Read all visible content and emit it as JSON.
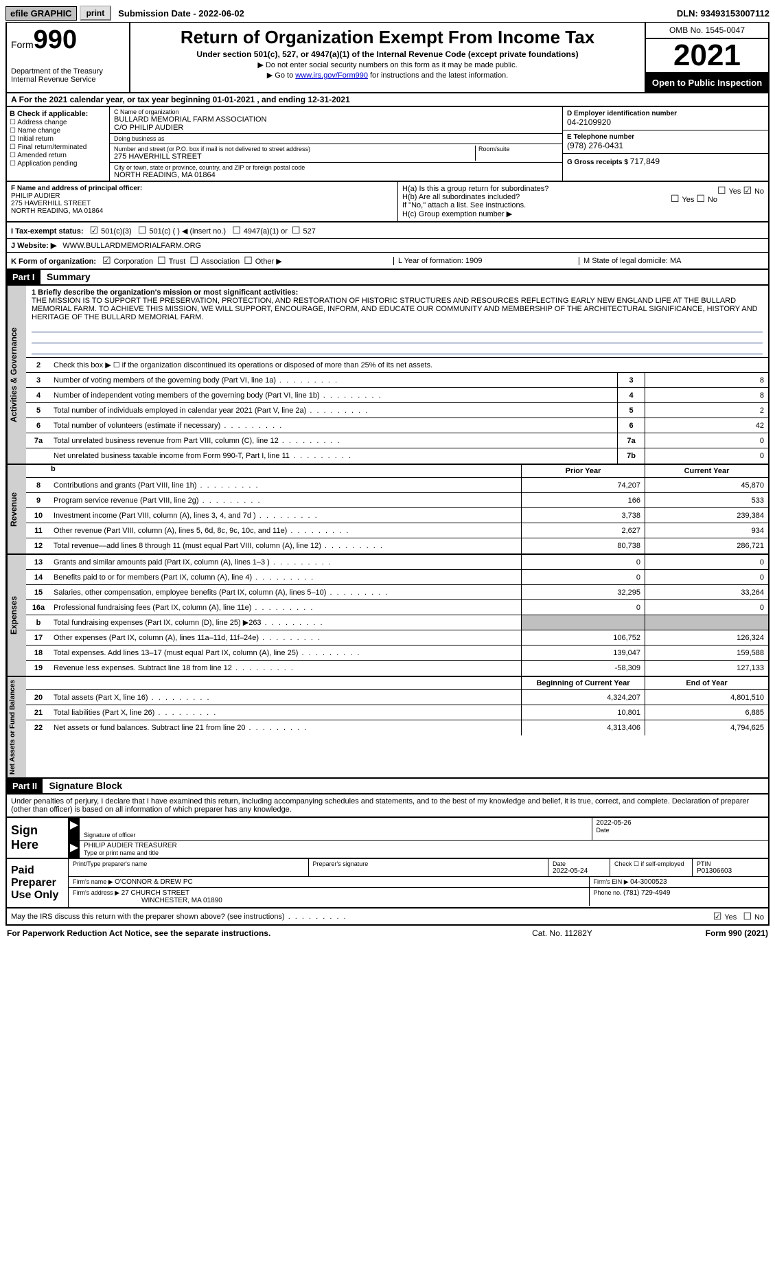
{
  "topbar": {
    "efile": "efile GRAPHIC",
    "print": "print",
    "subdate_lbl": "Submission Date - ",
    "subdate": "2022-06-02",
    "dln_lbl": "DLN: ",
    "dln": "93493153007112"
  },
  "header": {
    "form_small": "Form",
    "form_big": "990",
    "dept1": "Department of the Treasury",
    "dept2": "Internal Revenue Service",
    "title": "Return of Organization Exempt From Income Tax",
    "sub": "Under section 501(c), 527, or 4947(a)(1) of the Internal Revenue Code (except private foundations)",
    "note1": "Do not enter social security numbers on this form as it may be made public.",
    "note2_pre": "Go to ",
    "note2_link": "www.irs.gov/Form990",
    "note2_post": " for instructions and the latest information.",
    "omb": "OMB No. 1545-0047",
    "year": "2021",
    "open": "Open to Public Inspection"
  },
  "row_a": "For the 2021 calendar year, or tax year beginning 01-01-2021   , and ending 12-31-2021",
  "col_b": {
    "hdr": "B Check if applicable:",
    "items": [
      "Address change",
      "Name change",
      "Initial return",
      "Final return/terminated",
      "Amended return",
      "Application pending"
    ]
  },
  "col_c": {
    "name_lbl": "C Name of organization",
    "name1": "BULLARD MEMORIAL FARM ASSOCIATION",
    "name2": "C/O PHILIP AUDIER",
    "dba_lbl": "Doing business as",
    "dba": "",
    "addr_lbl": "Number and street (or P.O. box if mail is not delivered to street address)",
    "addr": "275 HAVERHILL STREET",
    "room_lbl": "Room/suite",
    "room": "",
    "city_lbl": "City or town, state or province, country, and ZIP or foreign postal code",
    "city": "NORTH READING, MA  01864"
  },
  "col_d": {
    "ein_lbl": "D Employer identification number",
    "ein": "04-2109920",
    "tel_lbl": "E Telephone number",
    "tel": "(978) 276-0431",
    "gross_lbl": "G Gross receipts $ ",
    "gross": "717,849"
  },
  "fh": {
    "f_lbl": "F Name and address of principal officer:",
    "f_name": "PHILIP AUDIER",
    "f_addr1": "275 HAVERHILL STREET",
    "f_addr2": "NORTH READING, MA  01864",
    "ha_lbl": "H(a)  Is this a group return for subordinates?",
    "hb_lbl": "H(b)  Are all subordinates included?",
    "hb_note": "If \"No,\" attach a list. See instructions.",
    "hc_lbl": "H(c)  Group exemption number ▶",
    "yes": "Yes",
    "no": "No"
  },
  "i": {
    "lbl": "I  Tax-exempt status:",
    "o1": "501(c)(3)",
    "o2": "501(c) (  ) ◀ (insert no.)",
    "o3": "4947(a)(1) or",
    "o4": "527"
  },
  "j": {
    "lbl": "J  Website: ▶",
    "val": " WWW.BULLARDMEMORIALFARM.ORG"
  },
  "k": {
    "lbl": "K Form of organization:",
    "o1": "Corporation",
    "o2": "Trust",
    "o3": "Association",
    "o4": "Other ▶",
    "l_lbl": "L Year of formation: ",
    "l_val": "1909",
    "m_lbl": "M State of legal domicile: ",
    "m_val": "MA"
  },
  "part1": {
    "hdr": "Part I",
    "title": "Summary"
  },
  "mission": {
    "lbl": "1  Briefly describe the organization's mission or most significant activities:",
    "txt": "THE MISSION IS TO SUPPORT THE PRESERVATION, PROTECTION, AND RESTORATION OF HISTORIC STRUCTURES AND RESOURCES REFLECTING EARLY NEW ENGLAND LIFE AT THE BULLARD MEMORIAL FARM. TO ACHIEVE THIS MISSION, WE WILL SUPPORT, ENCOURAGE, INFORM, AND EDUCATE OUR COMMUNITY AND MEMBERSHIP OF THE ARCHITECTURAL SIGNIFICANCE, HISTORY AND HERITAGE OF THE BULLARD MEMORIAL FARM."
  },
  "gov": {
    "vtab": "Activities & Governance",
    "l2": "Check this box ▶ ☐  if the organization discontinued its operations or disposed of more than 25% of its net assets.",
    "l3": "Number of voting members of the governing body (Part VI, line 1a)",
    "l4": "Number of independent voting members of the governing body (Part VI, line 1b)",
    "l5": "Total number of individuals employed in calendar year 2021 (Part V, line 2a)",
    "l6": "Total number of volunteers (estimate if necessary)",
    "l7a": "Total unrelated business revenue from Part VIII, column (C), line 12",
    "l7b": "Net unrelated business taxable income from Form 990-T, Part I, line 11",
    "v3": "8",
    "v4": "8",
    "v5": "2",
    "v6": "42",
    "v7a": "0",
    "v7b": "0"
  },
  "rev": {
    "vtab": "Revenue",
    "hdr_b": "b",
    "hdr_prior": "Prior Year",
    "hdr_curr": "Current Year",
    "rows": [
      {
        "n": "8",
        "d": "Contributions and grants (Part VIII, line 1h)",
        "p": "74,207",
        "c": "45,870"
      },
      {
        "n": "9",
        "d": "Program service revenue (Part VIII, line 2g)",
        "p": "166",
        "c": "533"
      },
      {
        "n": "10",
        "d": "Investment income (Part VIII, column (A), lines 3, 4, and 7d )",
        "p": "3,738",
        "c": "239,384"
      },
      {
        "n": "11",
        "d": "Other revenue (Part VIII, column (A), lines 5, 6d, 8c, 9c, 10c, and 11e)",
        "p": "2,627",
        "c": "934"
      },
      {
        "n": "12",
        "d": "Total revenue—add lines 8 through 11 (must equal Part VIII, column (A), line 12)",
        "p": "80,738",
        "c": "286,721"
      }
    ]
  },
  "exp": {
    "vtab": "Expenses",
    "rows": [
      {
        "n": "13",
        "d": "Grants and similar amounts paid (Part IX, column (A), lines 1–3 )",
        "p": "0",
        "c": "0"
      },
      {
        "n": "14",
        "d": "Benefits paid to or for members (Part IX, column (A), line 4)",
        "p": "0",
        "c": "0"
      },
      {
        "n": "15",
        "d": "Salaries, other compensation, employee benefits (Part IX, column (A), lines 5–10)",
        "p": "32,295",
        "c": "33,264"
      },
      {
        "n": "16a",
        "d": "Professional fundraising fees (Part IX, column (A), line 11e)",
        "p": "0",
        "c": "0"
      },
      {
        "n": "b",
        "d": "Total fundraising expenses (Part IX, column (D), line 25) ▶263",
        "p": "",
        "c": "",
        "grey": true
      },
      {
        "n": "17",
        "d": "Other expenses (Part IX, column (A), lines 11a–11d, 11f–24e)",
        "p": "106,752",
        "c": "126,324"
      },
      {
        "n": "18",
        "d": "Total expenses. Add lines 13–17 (must equal Part IX, column (A), line 25)",
        "p": "139,047",
        "c": "159,588"
      },
      {
        "n": "19",
        "d": "Revenue less expenses. Subtract line 18 from line 12",
        "p": "-58,309",
        "c": "127,133"
      }
    ]
  },
  "net": {
    "vtab": "Net Assets or Fund Balances",
    "hdr_prior": "Beginning of Current Year",
    "hdr_curr": "End of Year",
    "rows": [
      {
        "n": "20",
        "d": "Total assets (Part X, line 16)",
        "p": "4,324,207",
        "c": "4,801,510"
      },
      {
        "n": "21",
        "d": "Total liabilities (Part X, line 26)",
        "p": "10,801",
        "c": "6,885"
      },
      {
        "n": "22",
        "d": "Net assets or fund balances. Subtract line 21 from line 20",
        "p": "4,313,406",
        "c": "4,794,625"
      }
    ]
  },
  "part2": {
    "hdr": "Part II",
    "title": "Signature Block",
    "decl": "Under penalties of perjury, I declare that I have examined this return, including accompanying schedules and statements, and to the best of my knowledge and belief, it is true, correct, and complete. Declaration of preparer (other than officer) is based on all information of which preparer has any knowledge."
  },
  "sign": {
    "lbl": "Sign Here",
    "sig_lbl": "Signature of officer",
    "date": "2022-05-26",
    "date_lbl": "Date",
    "name": "PHILIP AUDIER  TREASURER",
    "name_lbl": "Type or print name and title"
  },
  "preparer": {
    "lbl": "Paid Preparer Use Only",
    "name_lbl": "Print/Type preparer's name",
    "name": "",
    "sig_lbl": "Preparer's signature",
    "date_lbl": "Date",
    "date": "2022-05-24",
    "self_lbl": "Check ☐ if self-employed",
    "ptin_lbl": "PTIN",
    "ptin": "P01306603",
    "firm_lbl": "Firm's name   ▶ ",
    "firm": "O'CONNOR & DREW PC",
    "ein_lbl": "Firm's EIN ▶ ",
    "ein": "04-3000523",
    "addr_lbl": "Firm's address ▶ ",
    "addr1": "27 CHURCH STREET",
    "addr2": "WINCHESTER, MA  01890",
    "phone_lbl": "Phone no. ",
    "phone": "(781) 729-4949"
  },
  "discuss": {
    "q": "May the IRS discuss this return with the preparer shown above? (see instructions)",
    "yes": "Yes",
    "no": "No"
  },
  "footer": {
    "l": "For Paperwork Reduction Act Notice, see the separate instructions.",
    "m": "Cat. No. 11282Y",
    "r": "Form 990 (2021)"
  }
}
